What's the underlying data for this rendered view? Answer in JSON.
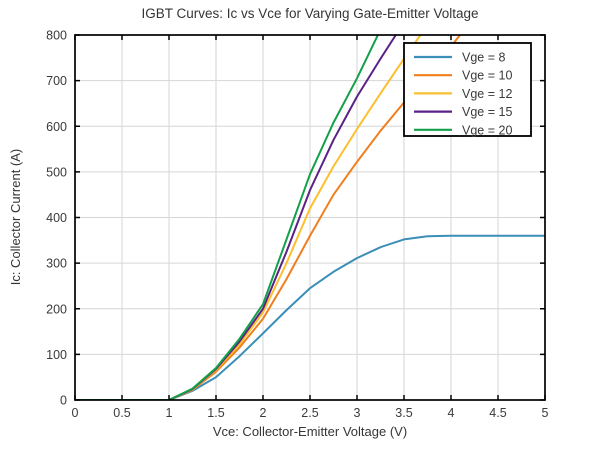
{
  "figure": {
    "title": "IGBT Curves: Ic vs Vce for Varying Gate-Emitter Voltage",
    "xlabel": "Vce: Collector-Emitter Voltage (V)",
    "ylabel": "Ic: Collector Current (A)"
  },
  "colors": {
    "grid": "#d6d6d6",
    "axis": "#000000",
    "tick_text": "#3a3a3a",
    "legend_border": "#000000",
    "legend_bg": "#ffffff"
  },
  "chart_data": {
    "type": "line",
    "title": "IGBT Curves: Ic vs Vce for Varying Gate-Emitter Voltage",
    "xlabel": "Vce: Collector-Emitter Voltage (V)",
    "ylabel": "Ic: Collector Current (A)",
    "xlim": [
      0,
      5
    ],
    "ylim": [
      0,
      800
    ],
    "grid": true,
    "legend_position": "northeast",
    "xticks": [
      0,
      0.5,
      1,
      1.5,
      2,
      2.5,
      3,
      3.5,
      4,
      4.5,
      5
    ],
    "xtick_labels": [
      "0",
      "0.5",
      "1",
      "1.5",
      "2",
      "2.5",
      "3",
      "3.5",
      "4",
      "4.5",
      "5"
    ],
    "yticks": [
      0,
      100,
      200,
      300,
      400,
      500,
      600,
      700,
      800
    ],
    "ytick_labels": [
      "0",
      "100",
      "200",
      "300",
      "400",
      "500",
      "600",
      "700",
      "800"
    ],
    "series": [
      {
        "name": "Vge = 8",
        "color": "#3A8EB8",
        "x": [
          0,
          1,
          1.25,
          1.5,
          1.75,
          2,
          2.25,
          2.5,
          2.75,
          3,
          3.25,
          3.5,
          3.75,
          4,
          4.5,
          5
        ],
        "y": [
          0,
          0,
          20,
          50,
          96,
          146,
          197,
          245,
          281,
          311,
          335,
          352,
          359,
          360,
          360,
          360
        ]
      },
      {
        "name": "Vge = 10",
        "color": "#F07E1D",
        "x": [
          0,
          1,
          1.25,
          1.5,
          1.75,
          2,
          2.25,
          2.5,
          2.75,
          3,
          3.25,
          3.5,
          3.75,
          4,
          4.25
        ],
        "y": [
          0,
          0,
          22,
          62,
          115,
          178,
          265,
          360,
          450,
          522,
          590,
          652,
          712,
          775,
          840
        ]
      },
      {
        "name": "Vge = 12",
        "color": "#FCBF2E",
        "x": [
          0,
          1,
          1.25,
          1.5,
          1.75,
          2,
          2.25,
          2.5,
          2.75,
          3,
          3.25,
          3.5,
          3.75
        ],
        "y": [
          0,
          0,
          23,
          66,
          122,
          192,
          300,
          420,
          512,
          594,
          672,
          748,
          822
        ]
      },
      {
        "name": "Vge = 15",
        "color": "#5B2286",
        "x": [
          0,
          1,
          1.25,
          1.5,
          1.75,
          2,
          2.25,
          2.5,
          2.75,
          3,
          3.25,
          3.5
        ],
        "y": [
          0,
          0,
          24,
          68,
          128,
          200,
          325,
          460,
          570,
          665,
          748,
          828
        ]
      },
      {
        "name": "Vge = 20",
        "color": "#12A04A",
        "x": [
          0,
          1,
          1.25,
          1.5,
          1.75,
          2,
          2.25,
          2.5,
          2.75,
          3,
          3.25,
          3.35
        ],
        "y": [
          0,
          0,
          25,
          70,
          134,
          210,
          352,
          495,
          608,
          705,
          812,
          852
        ]
      }
    ]
  }
}
